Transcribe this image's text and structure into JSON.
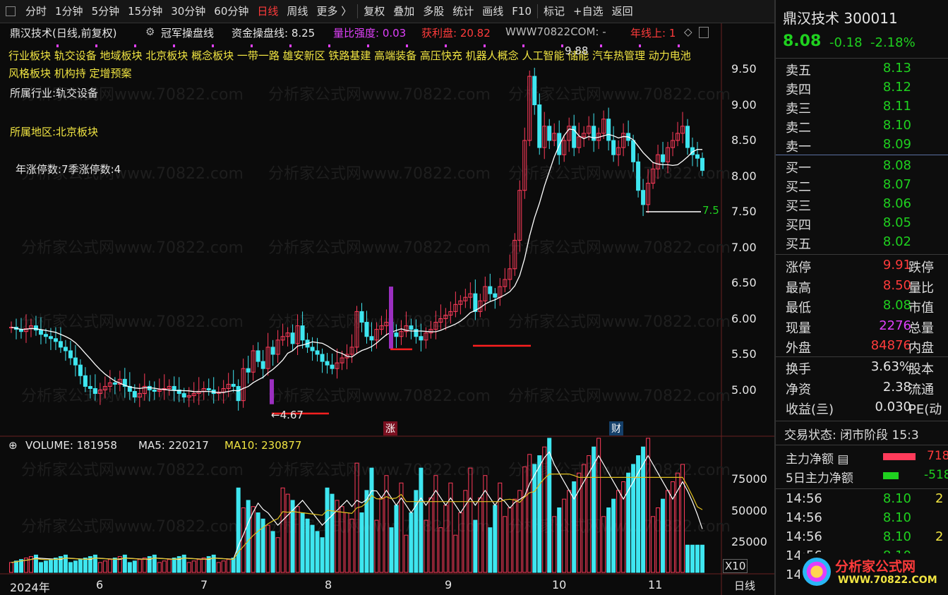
{
  "toolbar": {
    "items": [
      "分时",
      "1分钟",
      "5分钟",
      "15分钟",
      "30分钟",
      "60分钟",
      "日线",
      "周线",
      "更多 〉",
      "复权",
      "叠加",
      "多股",
      "统计",
      "画线",
      "F10",
      "标记",
      "+自选",
      "返回"
    ],
    "active": "日线"
  },
  "chart_header": {
    "stock": "鼎汉技术(日线,前复权)",
    "indicator": "冠军操盘线",
    "fund_line_label": "资金操盘线: 8.25",
    "volume_ratio_label": "量比强度: 0.03",
    "profit_label": "获利盘: 20.82",
    "watermark_url": "WWW70822COM: -",
    "year_line_label": "年线上: 1"
  },
  "concepts": {
    "line1": "行业板块 轨交设备 地域板块 北京板块 概念板块 一带一路 雄安新区 铁路基建 高端装备 高压快充 机器人概念 人工智能 储能 汽车热管理 动力电池",
    "line2": "风格板块 机构持 定增预案",
    "industry": "所属行业:轨交设备",
    "region": "所属地区:北京板块",
    "limit_stats": "年涨停数:7季涨停数:4"
  },
  "markers": {
    "low_label": "4.67",
    "support_label": "7.5",
    "peak_label": "9.88",
    "zhang": "涨",
    "cai": "财"
  },
  "volume_header": {
    "volume": "VOLUME: 181958",
    "ma5": "MA5: 220217",
    "ma10": "MA10: 230877"
  },
  "axis": {
    "price_ticks": [
      "9.50",
      "9.00",
      "8.50",
      "8.00",
      "7.50",
      "7.00",
      "6.50",
      "6.00",
      "5.50",
      "5.00"
    ],
    "volume_ticks": [
      "75000",
      "50000",
      "25000"
    ],
    "volume_unit": "X10",
    "date_labels": [
      "2024年",
      "6",
      "7",
      "8",
      "9",
      "10",
      "11"
    ],
    "period": "日线"
  },
  "quote": {
    "name": "鼎汉技术",
    "code": "300011",
    "price": "8.08",
    "change": "-0.18",
    "change_pct": "-2.18%",
    "asks": [
      {
        "label": "卖五",
        "price": "8.13"
      },
      {
        "label": "卖四",
        "price": "8.12"
      },
      {
        "label": "卖三",
        "price": "8.11"
      },
      {
        "label": "卖二",
        "price": "8.10"
      },
      {
        "label": "卖一",
        "price": "8.09"
      }
    ],
    "bids": [
      {
        "label": "买一",
        "price": "8.08"
      },
      {
        "label": "买二",
        "price": "8.07"
      },
      {
        "label": "买三",
        "price": "8.06"
      },
      {
        "label": "买四",
        "price": "8.05"
      },
      {
        "label": "买五",
        "price": "8.02"
      }
    ],
    "stats": [
      {
        "label": "涨停",
        "value": "9.91",
        "r": "跌停",
        "color": "#ff3b3b"
      },
      {
        "label": "最高",
        "value": "8.50",
        "r": "量比",
        "color": "#ff3b3b"
      },
      {
        "label": "最低",
        "value": "8.08",
        "r": "市值",
        "color": "#1fd11f"
      },
      {
        "label": "现量",
        "value": "2276",
        "r": "总量",
        "color": "#e040fb"
      },
      {
        "label": "外盘",
        "value": "84876",
        "r": "内盘",
        "color": "#ff3b3b"
      }
    ],
    "stats2": [
      {
        "label": "换手",
        "value": "3.63%",
        "r": "股本"
      },
      {
        "label": "净资",
        "value": "2.38",
        "r": "流通"
      },
      {
        "label": "收益(亖)",
        "value": "0.030",
        "r": "PE(动"
      }
    ],
    "trade_status": "交易状态: 闭市阶段 15:3",
    "main_net": "主力净额",
    "main_net_value": "718",
    "main_net5": "5日主力净额",
    "main_net5_value": "-518",
    "ticks": [
      {
        "time": "14:56",
        "price": "8.10",
        "vol": "2"
      },
      {
        "time": "14:56",
        "price": "8.10",
        "vol": ""
      },
      {
        "time": "14:56",
        "price": "8.10",
        "vol": "2"
      },
      {
        "time": "14:56",
        "price": "8.10",
        "vol": ""
      },
      {
        "time": "14",
        "price": "",
        "vol": ""
      }
    ],
    "logo_text": "分析家公式网",
    "logo_url": "WWW.70822.COM"
  },
  "watermark": "分析家公式网www.70822.com",
  "colors": {
    "up": "#ff3b5a",
    "down": "#3ee6f0",
    "ma": "#ffffff",
    "ma10": "#e0c020",
    "accent": "#f0e442"
  }
}
